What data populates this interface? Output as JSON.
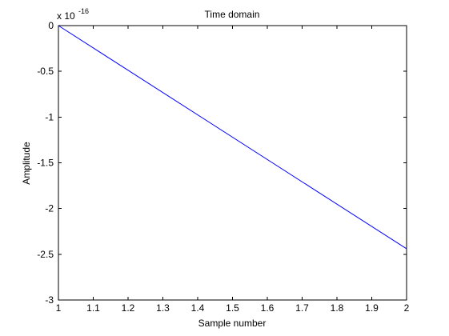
{
  "chart_data": {
    "type": "line",
    "title": "Time domain",
    "xlabel": "Sample number",
    "ylabel": "Amplitude",
    "xlim": [
      1,
      2
    ],
    "ylim": [
      -3,
      0
    ],
    "y_scale_factor_label": {
      "base": "x 10",
      "exponent": "-16"
    },
    "x_ticks": [
      1,
      1.1,
      1.2,
      1.3,
      1.4,
      1.5,
      1.6,
      1.7,
      1.8,
      1.9,
      2
    ],
    "x_tick_labels": [
      "1",
      "1.1",
      "1.2",
      "1.3",
      "1.4",
      "1.5",
      "1.6",
      "1.7",
      "1.8",
      "1.9",
      "2"
    ],
    "y_ticks": [
      0,
      -0.5,
      -1,
      -1.5,
      -2,
      -2.5,
      -3
    ],
    "y_tick_labels": [
      "0",
      "-0.5",
      "-1",
      "-1.5",
      "-2",
      "-2.5",
      "-3"
    ],
    "grid": false,
    "legend": false,
    "series": [
      {
        "color": "#0000ff",
        "x": [
          1,
          2
        ],
        "y": [
          0,
          -2.44
        ]
      }
    ]
  }
}
